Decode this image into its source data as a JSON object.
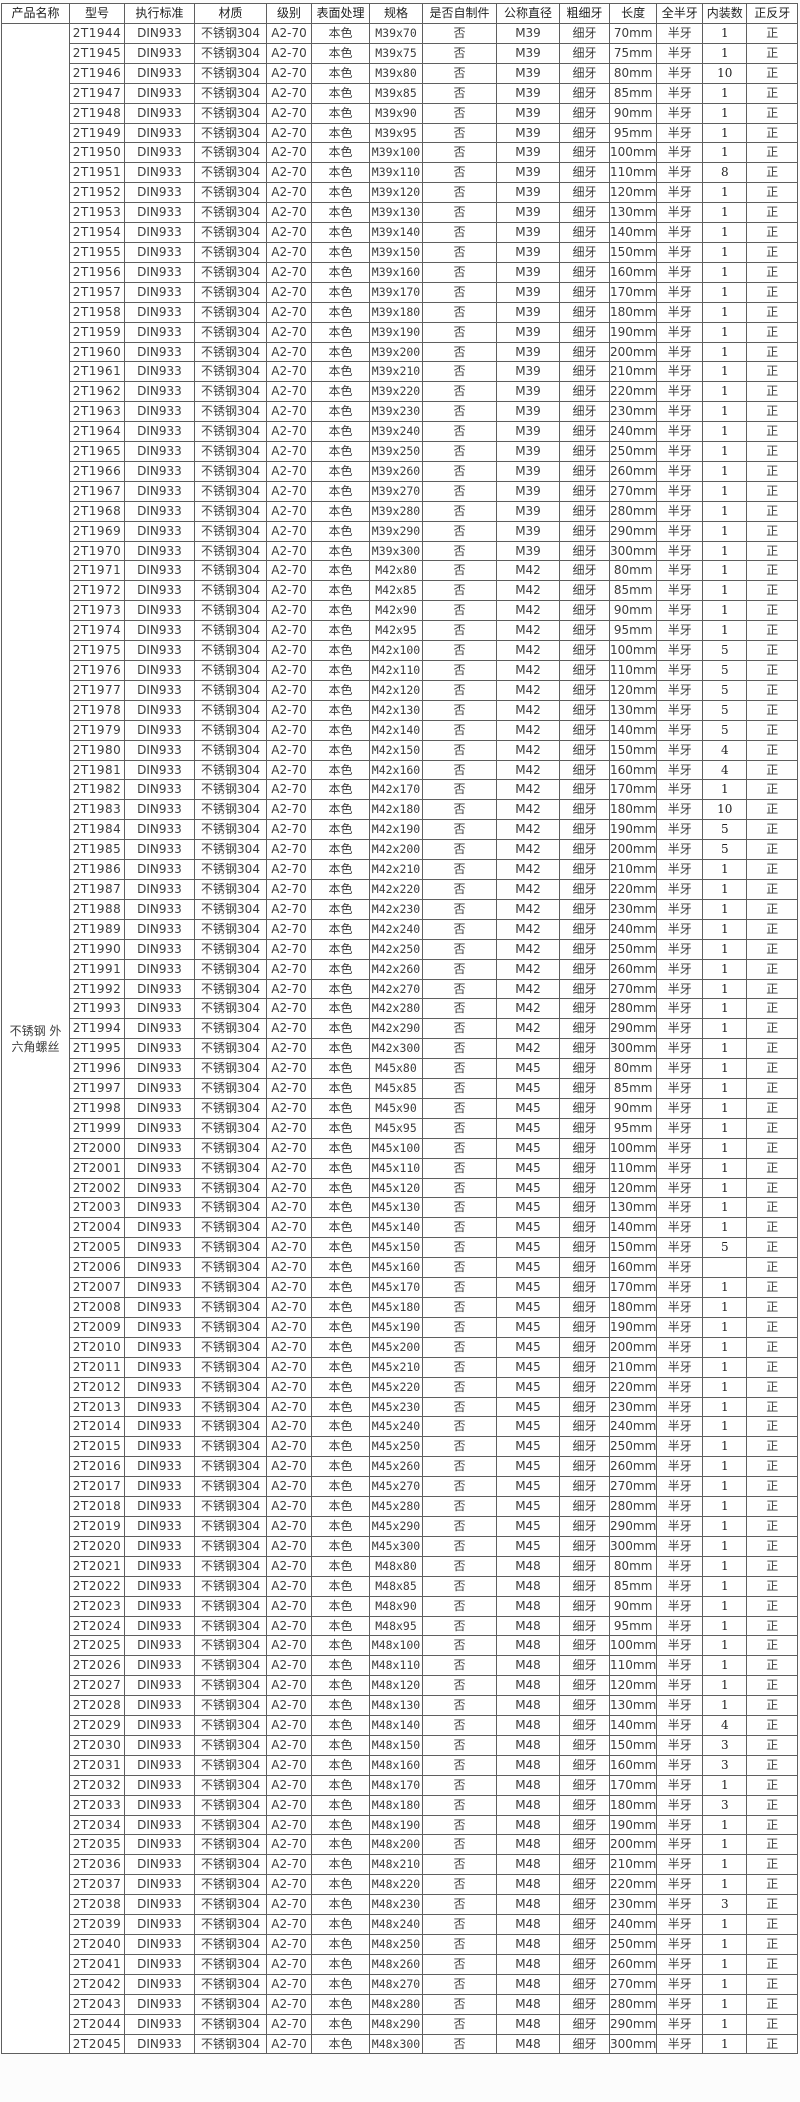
{
  "colors": {
    "table_border": "#5f5f5f",
    "outer_border": "#474747",
    "header_text": "#1f1f1f",
    "cell_text": "#3c3c3c",
    "table_background": "#ffffff",
    "page_background": "#fcfcfc"
  },
  "table": {
    "columns": [
      "产品名称",
      "型号",
      "执行标准",
      "材质",
      "级别",
      "表面处理",
      "规格",
      "是否自制件",
      "公称直径",
      "粗细牙",
      "长度",
      "全半牙",
      "内装数",
      "正反牙"
    ],
    "product_name_lines": [
      "不锈钢 外",
      "六角螺丝"
    ],
    "row_constants": {
      "standard": "DIN933",
      "material": "不锈钢304",
      "grade": "A2-70",
      "surface": "本色",
      "self_made": "否",
      "pitch": "细牙",
      "full_half": "半牙",
      "direction": "正"
    },
    "rows": [
      {
        "model": "2T1944",
        "spec": "M39x70",
        "dia": "M39",
        "len": "70mm",
        "qty": "1"
      },
      {
        "model": "2T1945",
        "spec": "M39x75",
        "dia": "M39",
        "len": "75mm",
        "qty": "1"
      },
      {
        "model": "2T1946",
        "spec": "M39x80",
        "dia": "M39",
        "len": "80mm",
        "qty": "10"
      },
      {
        "model": "2T1947",
        "spec": "M39x85",
        "dia": "M39",
        "len": "85mm",
        "qty": "1"
      },
      {
        "model": "2T1948",
        "spec": "M39x90",
        "dia": "M39",
        "len": "90mm",
        "qty": "1"
      },
      {
        "model": "2T1949",
        "spec": "M39x95",
        "dia": "M39",
        "len": "95mm",
        "qty": "1"
      },
      {
        "model": "2T1950",
        "spec": "M39x100",
        "dia": "M39",
        "len": "100mm",
        "qty": "1"
      },
      {
        "model": "2T1951",
        "spec": "M39x110",
        "dia": "M39",
        "len": "110mm",
        "qty": "8"
      },
      {
        "model": "2T1952",
        "spec": "M39x120",
        "dia": "M39",
        "len": "120mm",
        "qty": "1"
      },
      {
        "model": "2T1953",
        "spec": "M39x130",
        "dia": "M39",
        "len": "130mm",
        "qty": "1"
      },
      {
        "model": "2T1954",
        "spec": "M39x140",
        "dia": "M39",
        "len": "140mm",
        "qty": "1"
      },
      {
        "model": "2T1955",
        "spec": "M39x150",
        "dia": "M39",
        "len": "150mm",
        "qty": "1"
      },
      {
        "model": "2T1956",
        "spec": "M39x160",
        "dia": "M39",
        "len": "160mm",
        "qty": "1"
      },
      {
        "model": "2T1957",
        "spec": "M39x170",
        "dia": "M39",
        "len": "170mm",
        "qty": "1"
      },
      {
        "model": "2T1958",
        "spec": "M39x180",
        "dia": "M39",
        "len": "180mm",
        "qty": "1"
      },
      {
        "model": "2T1959",
        "spec": "M39x190",
        "dia": "M39",
        "len": "190mm",
        "qty": "1"
      },
      {
        "model": "2T1960",
        "spec": "M39x200",
        "dia": "M39",
        "len": "200mm",
        "qty": "1"
      },
      {
        "model": "2T1961",
        "spec": "M39x210",
        "dia": "M39",
        "len": "210mm",
        "qty": "1"
      },
      {
        "model": "2T1962",
        "spec": "M39x220",
        "dia": "M39",
        "len": "220mm",
        "qty": "1"
      },
      {
        "model": "2T1963",
        "spec": "M39x230",
        "dia": "M39",
        "len": "230mm",
        "qty": "1"
      },
      {
        "model": "2T1964",
        "spec": "M39x240",
        "dia": "M39",
        "len": "240mm",
        "qty": "1"
      },
      {
        "model": "2T1965",
        "spec": "M39x250",
        "dia": "M39",
        "len": "250mm",
        "qty": "1"
      },
      {
        "model": "2T1966",
        "spec": "M39x260",
        "dia": "M39",
        "len": "260mm",
        "qty": "1"
      },
      {
        "model": "2T1967",
        "spec": "M39x270",
        "dia": "M39",
        "len": "270mm",
        "qty": "1"
      },
      {
        "model": "2T1968",
        "spec": "M39x280",
        "dia": "M39",
        "len": "280mm",
        "qty": "1"
      },
      {
        "model": "2T1969",
        "spec": "M39x290",
        "dia": "M39",
        "len": "290mm",
        "qty": "1"
      },
      {
        "model": "2T1970",
        "spec": "M39x300",
        "dia": "M39",
        "len": "300mm",
        "qty": "1"
      },
      {
        "model": "2T1971",
        "spec": "M42x80",
        "dia": "M42",
        "len": "80mm",
        "qty": "1"
      },
      {
        "model": "2T1972",
        "spec": "M42x85",
        "dia": "M42",
        "len": "85mm",
        "qty": "1"
      },
      {
        "model": "2T1973",
        "spec": "M42x90",
        "dia": "M42",
        "len": "90mm",
        "qty": "1"
      },
      {
        "model": "2T1974",
        "spec": "M42x95",
        "dia": "M42",
        "len": "95mm",
        "qty": "1"
      },
      {
        "model": "2T1975",
        "spec": "M42x100",
        "dia": "M42",
        "len": "100mm",
        "qty": "5"
      },
      {
        "model": "2T1976",
        "spec": "M42x110",
        "dia": "M42",
        "len": "110mm",
        "qty": "5"
      },
      {
        "model": "2T1977",
        "spec": "M42x120",
        "dia": "M42",
        "len": "120mm",
        "qty": "5"
      },
      {
        "model": "2T1978",
        "spec": "M42x130",
        "dia": "M42",
        "len": "130mm",
        "qty": "5"
      },
      {
        "model": "2T1979",
        "spec": "M42x140",
        "dia": "M42",
        "len": "140mm",
        "qty": "5"
      },
      {
        "model": "2T1980",
        "spec": "M42x150",
        "dia": "M42",
        "len": "150mm",
        "qty": "4"
      },
      {
        "model": "2T1981",
        "spec": "M42x160",
        "dia": "M42",
        "len": "160mm",
        "qty": "4"
      },
      {
        "model": "2T1982",
        "spec": "M42x170",
        "dia": "M42",
        "len": "170mm",
        "qty": "1"
      },
      {
        "model": "2T1983",
        "spec": "M42x180",
        "dia": "M42",
        "len": "180mm",
        "qty": "10"
      },
      {
        "model": "2T1984",
        "spec": "M42x190",
        "dia": "M42",
        "len": "190mm",
        "qty": "5"
      },
      {
        "model": "2T1985",
        "spec": "M42x200",
        "dia": "M42",
        "len": "200mm",
        "qty": "5"
      },
      {
        "model": "2T1986",
        "spec": "M42x210",
        "dia": "M42",
        "len": "210mm",
        "qty": "1"
      },
      {
        "model": "2T1987",
        "spec": "M42x220",
        "dia": "M42",
        "len": "220mm",
        "qty": "1"
      },
      {
        "model": "2T1988",
        "spec": "M42x230",
        "dia": "M42",
        "len": "230mm",
        "qty": "1"
      },
      {
        "model": "2T1989",
        "spec": "M42x240",
        "dia": "M42",
        "len": "240mm",
        "qty": "1"
      },
      {
        "model": "2T1990",
        "spec": "M42x250",
        "dia": "M42",
        "len": "250mm",
        "qty": "1"
      },
      {
        "model": "2T1991",
        "spec": "M42x260",
        "dia": "M42",
        "len": "260mm",
        "qty": "1"
      },
      {
        "model": "2T1992",
        "spec": "M42x270",
        "dia": "M42",
        "len": "270mm",
        "qty": "1"
      },
      {
        "model": "2T1993",
        "spec": "M42x280",
        "dia": "M42",
        "len": "280mm",
        "qty": "1"
      },
      {
        "model": "2T1994",
        "spec": "M42x290",
        "dia": "M42",
        "len": "290mm",
        "qty": "1"
      },
      {
        "model": "2T1995",
        "spec": "M42x300",
        "dia": "M42",
        "len": "300mm",
        "qty": "1"
      },
      {
        "model": "2T1996",
        "spec": "M45x80",
        "dia": "M45",
        "len": "80mm",
        "qty": "1"
      },
      {
        "model": "2T1997",
        "spec": "M45x85",
        "dia": "M45",
        "len": "85mm",
        "qty": "1"
      },
      {
        "model": "2T1998",
        "spec": "M45x90",
        "dia": "M45",
        "len": "90mm",
        "qty": "1"
      },
      {
        "model": "2T1999",
        "spec": "M45x95",
        "dia": "M45",
        "len": "95mm",
        "qty": "1"
      },
      {
        "model": "2T2000",
        "spec": "M45x100",
        "dia": "M45",
        "len": "100mm",
        "qty": "1"
      },
      {
        "model": "2T2001",
        "spec": "M45x110",
        "dia": "M45",
        "len": "110mm",
        "qty": "1"
      },
      {
        "model": "2T2002",
        "spec": "M45x120",
        "dia": "M45",
        "len": "120mm",
        "qty": "1"
      },
      {
        "model": "2T2003",
        "spec": "M45x130",
        "dia": "M45",
        "len": "130mm",
        "qty": "1"
      },
      {
        "model": "2T2004",
        "spec": "M45x140",
        "dia": "M45",
        "len": "140mm",
        "qty": "1"
      },
      {
        "model": "2T2005",
        "spec": "M45x150",
        "dia": "M45",
        "len": "150mm",
        "qty": "5"
      },
      {
        "model": "2T2006",
        "spec": "M45x160",
        "dia": "M45",
        "len": "160mm",
        "qty": ""
      },
      {
        "model": "2T2007",
        "spec": "M45x170",
        "dia": "M45",
        "len": "170mm",
        "qty": "1"
      },
      {
        "model": "2T2008",
        "spec": "M45x180",
        "dia": "M45",
        "len": "180mm",
        "qty": "1"
      },
      {
        "model": "2T2009",
        "spec": "M45x190",
        "dia": "M45",
        "len": "190mm",
        "qty": "1"
      },
      {
        "model": "2T2010",
        "spec": "M45x200",
        "dia": "M45",
        "len": "200mm",
        "qty": "1"
      },
      {
        "model": "2T2011",
        "spec": "M45x210",
        "dia": "M45",
        "len": "210mm",
        "qty": "1"
      },
      {
        "model": "2T2012",
        "spec": "M45x220",
        "dia": "M45",
        "len": "220mm",
        "qty": "1"
      },
      {
        "model": "2T2013",
        "spec": "M45x230",
        "dia": "M45",
        "len": "230mm",
        "qty": "1"
      },
      {
        "model": "2T2014",
        "spec": "M45x240",
        "dia": "M45",
        "len": "240mm",
        "qty": "1"
      },
      {
        "model": "2T2015",
        "spec": "M45x250",
        "dia": "M45",
        "len": "250mm",
        "qty": "1"
      },
      {
        "model": "2T2016",
        "spec": "M45x260",
        "dia": "M45",
        "len": "260mm",
        "qty": "1"
      },
      {
        "model": "2T2017",
        "spec": "M45x270",
        "dia": "M45",
        "len": "270mm",
        "qty": "1"
      },
      {
        "model": "2T2018",
        "spec": "M45x280",
        "dia": "M45",
        "len": "280mm",
        "qty": "1"
      },
      {
        "model": "2T2019",
        "spec": "M45x290",
        "dia": "M45",
        "len": "290mm",
        "qty": "1"
      },
      {
        "model": "2T2020",
        "spec": "M45x300",
        "dia": "M45",
        "len": "300mm",
        "qty": "1"
      },
      {
        "model": "2T2021",
        "spec": "M48x80",
        "dia": "M48",
        "len": "80mm",
        "qty": "1"
      },
      {
        "model": "2T2022",
        "spec": "M48x85",
        "dia": "M48",
        "len": "85mm",
        "qty": "1"
      },
      {
        "model": "2T2023",
        "spec": "M48x90",
        "dia": "M48",
        "len": "90mm",
        "qty": "1"
      },
      {
        "model": "2T2024",
        "spec": "M48x95",
        "dia": "M48",
        "len": "95mm",
        "qty": "1"
      },
      {
        "model": "2T2025",
        "spec": "M48x100",
        "dia": "M48",
        "len": "100mm",
        "qty": "1"
      },
      {
        "model": "2T2026",
        "spec": "M48x110",
        "dia": "M48",
        "len": "110mm",
        "qty": "1"
      },
      {
        "model": "2T2027",
        "spec": "M48x120",
        "dia": "M48",
        "len": "120mm",
        "qty": "1"
      },
      {
        "model": "2T2028",
        "spec": "M48x130",
        "dia": "M48",
        "len": "130mm",
        "qty": "1"
      },
      {
        "model": "2T2029",
        "spec": "M48x140",
        "dia": "M48",
        "len": "140mm",
        "qty": "4"
      },
      {
        "model": "2T2030",
        "spec": "M48x150",
        "dia": "M48",
        "len": "150mm",
        "qty": "3"
      },
      {
        "model": "2T2031",
        "spec": "M48x160",
        "dia": "M48",
        "len": "160mm",
        "qty": "3"
      },
      {
        "model": "2T2032",
        "spec": "M48x170",
        "dia": "M48",
        "len": "170mm",
        "qty": "1"
      },
      {
        "model": "2T2033",
        "spec": "M48x180",
        "dia": "M48",
        "len": "180mm",
        "qty": "3"
      },
      {
        "model": "2T2034",
        "spec": "M48x190",
        "dia": "M48",
        "len": "190mm",
        "qty": "1"
      },
      {
        "model": "2T2035",
        "spec": "M48x200",
        "dia": "M48",
        "len": "200mm",
        "qty": "1"
      },
      {
        "model": "2T2036",
        "spec": "M48x210",
        "dia": "M48",
        "len": "210mm",
        "qty": "1"
      },
      {
        "model": "2T2037",
        "spec": "M48x220",
        "dia": "M48",
        "len": "220mm",
        "qty": "1"
      },
      {
        "model": "2T2038",
        "spec": "M48x230",
        "dia": "M48",
        "len": "230mm",
        "qty": "3"
      },
      {
        "model": "2T2039",
        "spec": "M48x240",
        "dia": "M48",
        "len": "240mm",
        "qty": "1"
      },
      {
        "model": "2T2040",
        "spec": "M48x250",
        "dia": "M48",
        "len": "250mm",
        "qty": "1"
      },
      {
        "model": "2T2041",
        "spec": "M48x260",
        "dia": "M48",
        "len": "260mm",
        "qty": "1"
      },
      {
        "model": "2T2042",
        "spec": "M48x270",
        "dia": "M48",
        "len": "270mm",
        "qty": "1"
      },
      {
        "model": "2T2043",
        "spec": "M48x280",
        "dia": "M48",
        "len": "280mm",
        "qty": "1"
      },
      {
        "model": "2T2044",
        "spec": "M48x290",
        "dia": "M48",
        "len": "290mm",
        "qty": "1"
      },
      {
        "model": "2T2045",
        "spec": "M48x300",
        "dia": "M48",
        "len": "300mm",
        "qty": "1"
      }
    ]
  }
}
